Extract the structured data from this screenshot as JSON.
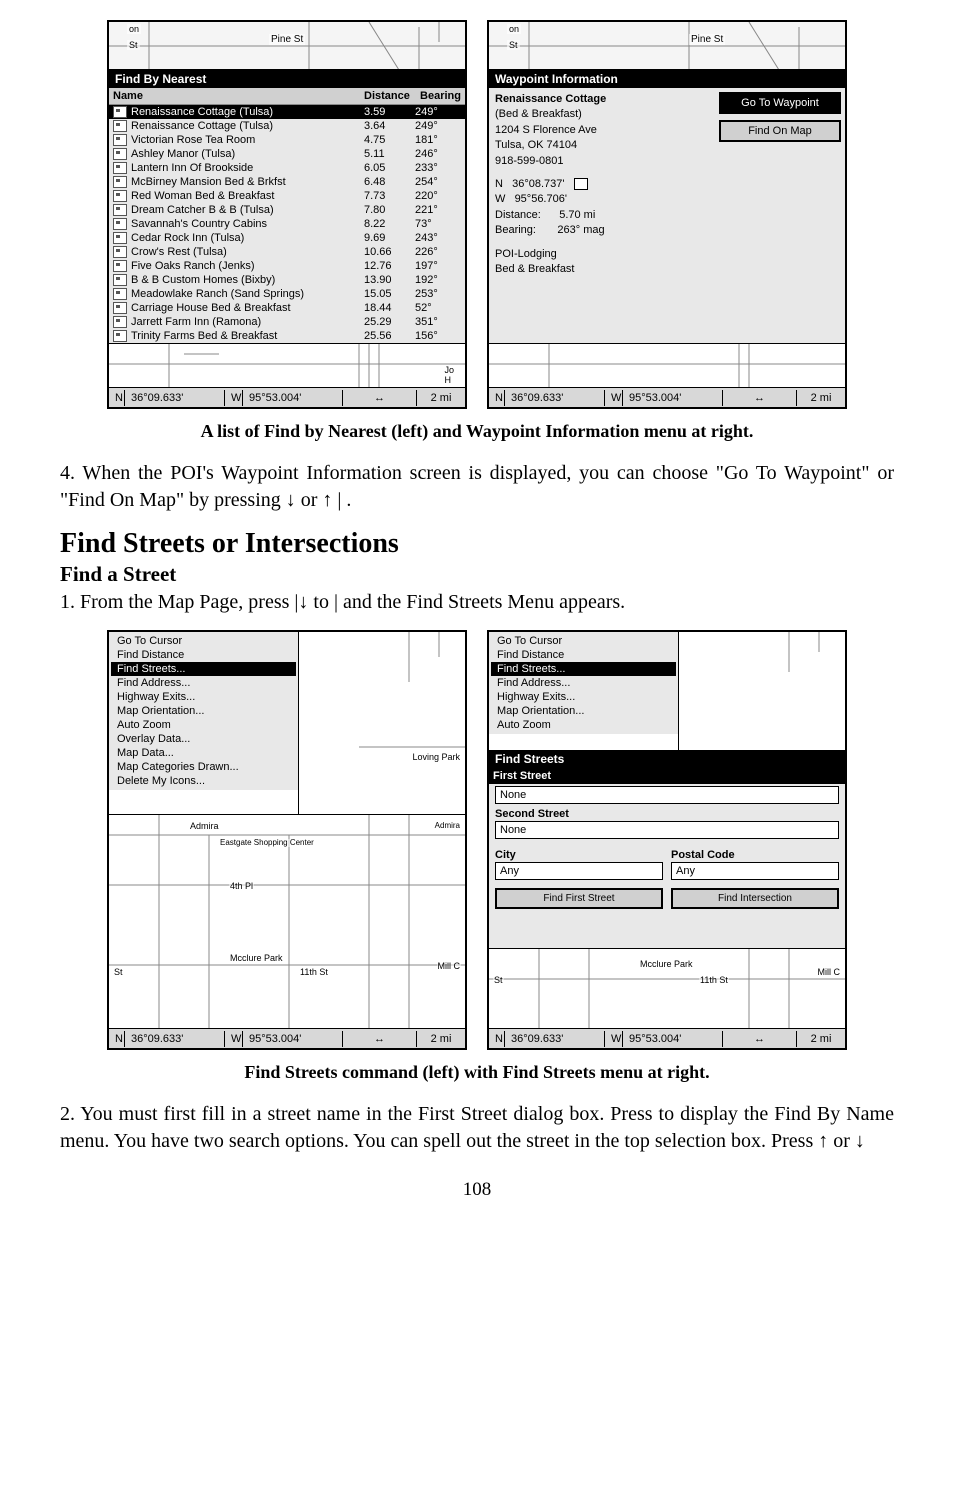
{
  "screen1": {
    "pin_label": "Pine St",
    "header": "Find By Nearest",
    "columns": {
      "name": "Name",
      "dist": "Distance",
      "bear": "Bearing"
    },
    "rows": [
      {
        "name": "Renaissance Cottage (Tulsa)",
        "dist": "3.59",
        "bear": "249°",
        "selected": true
      },
      {
        "name": "Renaissance Cottage (Tulsa)",
        "dist": "3.64",
        "bear": "249°"
      },
      {
        "name": "Victorian Rose Tea Room",
        "dist": "4.75",
        "bear": "181°"
      },
      {
        "name": "Ashley Manor (Tulsa)",
        "dist": "5.11",
        "bear": "246°"
      },
      {
        "name": "Lantern Inn Of Brookside",
        "dist": "6.05",
        "bear": "233°"
      },
      {
        "name": "McBirney Mansion Bed & Brkfst",
        "dist": "6.48",
        "bear": "254°"
      },
      {
        "name": "Red Woman Bed & Breakfast",
        "dist": "7.73",
        "bear": "220°"
      },
      {
        "name": "Dream Catcher B & B (Tulsa)",
        "dist": "7.80",
        "bear": "221°"
      },
      {
        "name": "Savannah's Country Cabins",
        "dist": "8.22",
        "bear": "73°"
      },
      {
        "name": "Cedar Rock Inn (Tulsa)",
        "dist": "9.69",
        "bear": "243°"
      },
      {
        "name": "Crow's Rest (Tulsa)",
        "dist": "10.66",
        "bear": "226°"
      },
      {
        "name": "Five Oaks Ranch (Jenks)",
        "dist": "12.76",
        "bear": "197°"
      },
      {
        "name": "B & B Custom Homes (Bixby)",
        "dist": "13.90",
        "bear": "192°"
      },
      {
        "name": "Meadowlake Ranch (Sand Springs)",
        "dist": "15.05",
        "bear": "253°"
      },
      {
        "name": "Carriage House Bed & Breakfast",
        "dist": "18.44",
        "bear": "52°"
      },
      {
        "name": "Jarrett Farm Inn (Ramona)",
        "dist": "25.29",
        "bear": "351°"
      },
      {
        "name": "Trinity Farms Bed & Breakfast",
        "dist": "25.56",
        "bear": "156°"
      }
    ]
  },
  "screen2": {
    "pin_label": "Pine St",
    "header": "Waypoint Information",
    "title": "Renaissance Cottage",
    "subtitle": "(Bed & Breakfast)",
    "addr1": "1204 S Florence Ave",
    "addr2": "Tulsa, OK 74104",
    "phone": "918-599-0801",
    "lat_label": "N",
    "lat": "36°08.737'",
    "lon_label": "W",
    "lon": "95°56.706'",
    "dist_label": "Distance:",
    "dist": "5.70 mi",
    "bear_label": "Bearing:",
    "bear": "263° mag",
    "cat1": "POI-Lodging",
    "cat2": "Bed & Breakfast",
    "btn1": "Go To Waypoint",
    "btn2": "Find On Map"
  },
  "status": {
    "n": "N",
    "lat": "36°09.633'",
    "w": "W",
    "lon": "95°53.004'",
    "arrow": "↔",
    "zoom": "2 mi"
  },
  "caption1": "A list of Find by Nearest (left) and Waypoint Information menu at right.",
  "para4": "4. When the POI's Waypoint Information screen is displayed, you can choose \"Go To Waypoint\" or \"Find On Map\" by pressing ↓ or ↑ |      .",
  "h2": "Find Streets or Intersections",
  "h3": "Find a Street",
  "para1a": "1. From the Map Page, press       |↓ to                    |       and the Find Streets Menu appears.",
  "screen3": {
    "menu": [
      "Go To Cursor",
      "Find Distance",
      "Find Streets...",
      "Find Address...",
      "Highway Exits...",
      "Map Orientation...",
      "Auto Zoom",
      "Overlay Data...",
      "Map Data...",
      "Map Categories Drawn...",
      "Delete My Icons..."
    ],
    "selected_index": 2,
    "map_labels": {
      "admiral": "Admira",
      "eastgate": "Eastgate Shopping Center",
      "fourth": "4th Pl",
      "mcclure": "Mcclure Park",
      "eleventh": "11th St",
      "mill": "Mill C",
      "st": "St",
      "loving": "Loving Park"
    }
  },
  "screen4": {
    "menu": [
      "Go To Cursor",
      "Find Distance",
      "Find Streets...",
      "Find Address...",
      "Highway Exits...",
      "Map Orientation...",
      "Auto Zoom"
    ],
    "header2": "Find Streets",
    "first_label": "First Street",
    "first_val": "None",
    "second_label": "Second Street",
    "second_val": "None",
    "city_label": "City",
    "city_val": "Any",
    "postal_label": "Postal Code",
    "postal_val": "Any",
    "btn_first": "Find First Street",
    "btn_inter": "Find Intersection",
    "map_labels": {
      "mcclure": "Mcclure Park",
      "eleventh": "11th St",
      "mill": "Mill C",
      "st": "St"
    }
  },
  "caption2": "Find Streets command (left) with Find Streets menu at right.",
  "para2": "2. You must first fill in a street name in the First Street dialog box. Press       to display the Find By Name menu. You have two search options. You can spell out the street in the top selection box. Press ↑ or ↓",
  "pagenum": "108"
}
